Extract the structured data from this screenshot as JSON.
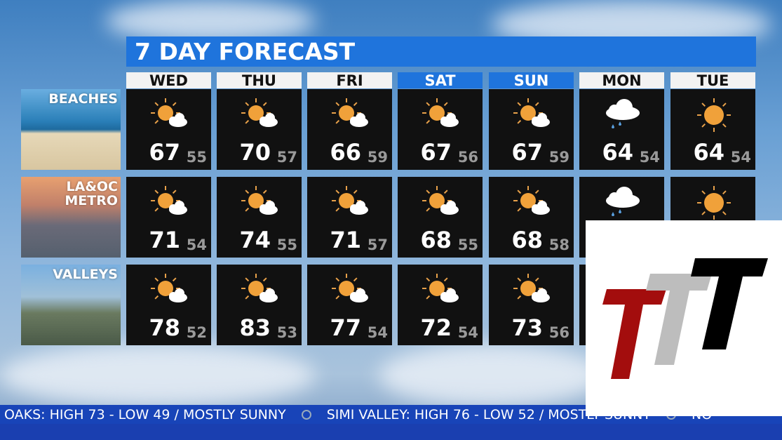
{
  "title": "7 DAY FORECAST",
  "days": [
    {
      "label": "WED",
      "weekend": false
    },
    {
      "label": "THU",
      "weekend": false
    },
    {
      "label": "FRI",
      "weekend": false
    },
    {
      "label": "SAT",
      "weekend": true
    },
    {
      "label": "SUN",
      "weekend": true
    },
    {
      "label": "MON",
      "weekend": false
    },
    {
      "label": "TUE",
      "weekend": false
    }
  ],
  "regions": [
    {
      "label": "BEACHES",
      "cells": [
        {
          "icon": "partly-sunny",
          "hi": "67",
          "lo": "55"
        },
        {
          "icon": "partly-sunny",
          "hi": "70",
          "lo": "57"
        },
        {
          "icon": "partly-sunny",
          "hi": "66",
          "lo": "59"
        },
        {
          "icon": "partly-sunny",
          "hi": "67",
          "lo": "56"
        },
        {
          "icon": "partly-sunny",
          "hi": "67",
          "lo": "59"
        },
        {
          "icon": "rain-cloud",
          "hi": "64",
          "lo": "54"
        },
        {
          "icon": "sunny",
          "hi": "64",
          "lo": "54"
        }
      ]
    },
    {
      "label": "LA&OC\nMETRO",
      "cells": [
        {
          "icon": "partly-sunny",
          "hi": "71",
          "lo": "54"
        },
        {
          "icon": "partly-sunny",
          "hi": "74",
          "lo": "55"
        },
        {
          "icon": "partly-sunny",
          "hi": "71",
          "lo": "57"
        },
        {
          "icon": "partly-sunny",
          "hi": "68",
          "lo": "55"
        },
        {
          "icon": "partly-sunny",
          "hi": "68",
          "lo": "58"
        },
        {
          "icon": "rain-cloud"
        },
        {
          "icon": "sunny"
        }
      ]
    },
    {
      "label": "VALLEYS",
      "cells": [
        {
          "icon": "partly-sunny",
          "hi": "78",
          "lo": "52"
        },
        {
          "icon": "partly-sunny",
          "hi": "83",
          "lo": "53"
        },
        {
          "icon": "partly-sunny",
          "hi": "77",
          "lo": "54"
        },
        {
          "icon": "partly-sunny",
          "hi": "72",
          "lo": "54"
        },
        {
          "icon": "partly-sunny",
          "hi": "73",
          "lo": "56"
        },
        {},
        {}
      ]
    }
  ],
  "ticker": {
    "item1": "OAKS: HIGH 73 - LOW 49 / MOSTLY SUNNY",
    "item2": "SIMI VALLEY: HIGH 76 - LOW 52 / MOSTLY SUNNY",
    "item3": "NO"
  },
  "colors": {
    "header_blue": "#1f74dc",
    "sun": "#f0a13a",
    "ticker": "#1844b8"
  },
  "logo": {
    "text": "TTT"
  }
}
